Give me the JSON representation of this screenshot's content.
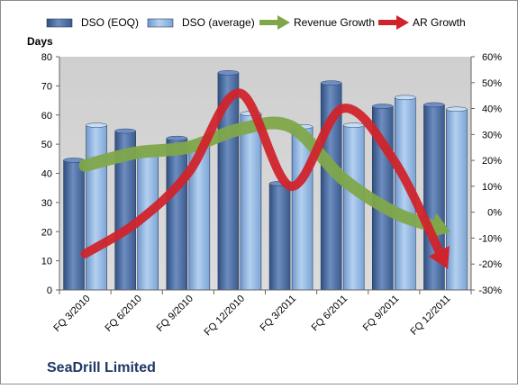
{
  "chart_data": {
    "type": "bar",
    "title": "SeaDrill Limited",
    "categories": [
      "FQ 3/2010",
      "FQ 6/2010",
      "FQ 9/2010",
      "FQ 12/2010",
      "FQ 3/2011",
      "FQ 6/2011",
      "FQ 9/2011",
      "FQ 12/2011"
    ],
    "ylabel": "Days",
    "ylim": [
      0,
      80
    ],
    "yticks": [
      0,
      10,
      20,
      30,
      40,
      50,
      60,
      70,
      80
    ],
    "y2lim": [
      -30,
      60
    ],
    "y2ticks": [
      "-30%",
      "-20%",
      "-10%",
      "0%",
      "10%",
      "20%",
      "30%",
      "40%",
      "50%",
      "60%"
    ],
    "legend_position": "top",
    "series": [
      {
        "name": "DSO (EOQ)",
        "kind": "bar",
        "axis": "left",
        "color": "#4a6aa0",
        "values": [
          44.5,
          54.5,
          52,
          74.5,
          36.5,
          71,
          63,
          63.5
        ]
      },
      {
        "name": "DSO (average)",
        "kind": "bar",
        "axis": "left",
        "color": "#8fb4e0",
        "values": [
          56.5,
          48,
          50,
          60.5,
          56,
          56.5,
          66,
          62
        ]
      },
      {
        "name": "Revenue Growth",
        "kind": "arrow-line",
        "axis": "right",
        "color": "#7fa64a",
        "values": [
          18,
          23,
          25,
          32,
          33,
          13,
          0,
          -7
        ]
      },
      {
        "name": "AR Growth",
        "kind": "arrow-line",
        "axis": "right",
        "color": "#d0242c",
        "values": [
          -16,
          -4,
          15,
          46,
          10,
          40,
          20,
          -20
        ]
      }
    ],
    "grid": false
  }
}
